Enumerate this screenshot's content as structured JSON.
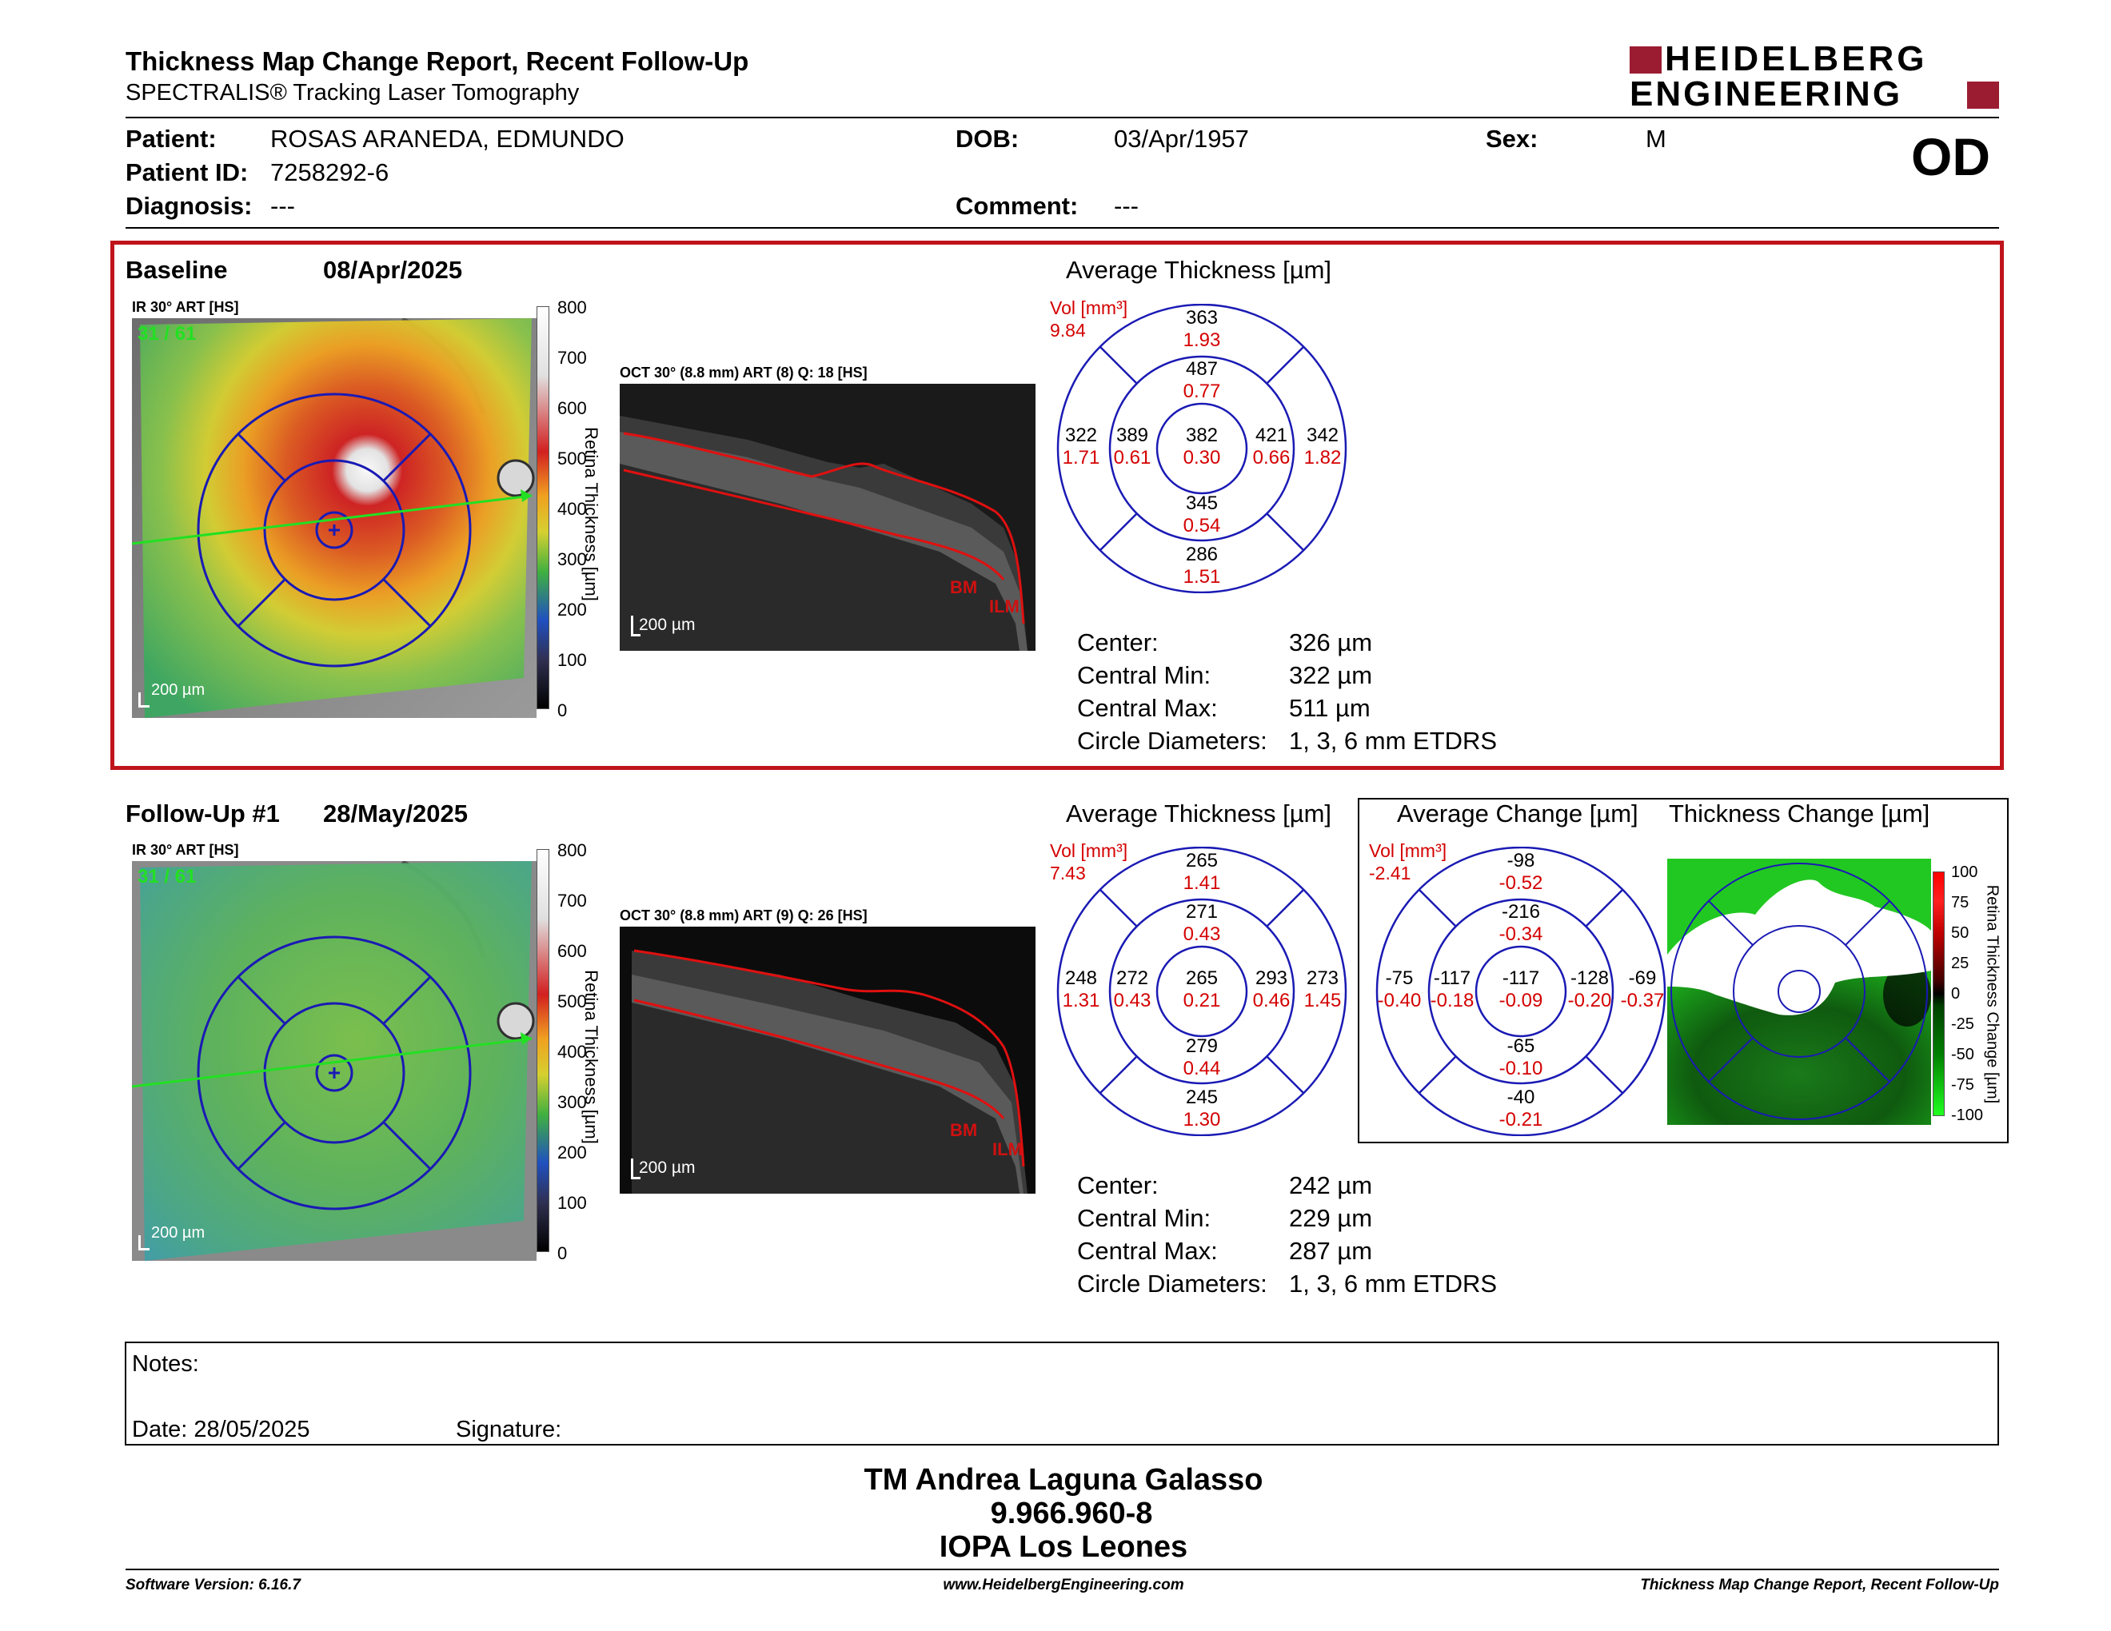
{
  "header": {
    "title": "Thickness Map Change Report, Recent Follow-Up",
    "subtitle": "SPECTRALIS® Tracking Laser Tomography",
    "logo_line1": "HEIDELBERG",
    "logo_line2": "ENGINEERING",
    "eye": "OD",
    "brand_color": "#9b1c31"
  },
  "patient": {
    "patient_label": "Patient:",
    "patient_value": "ROSAS ARANEDA, EDMUNDO",
    "id_label": "Patient ID:",
    "id_value": "7258292-6",
    "diagnosis_label": "Diagnosis:",
    "diagnosis_value": "---",
    "dob_label": "DOB:",
    "dob_value": "03/Apr/1957",
    "comment_label": "Comment:",
    "comment_value": "---",
    "sex_label": "Sex:",
    "sex_value": "M"
  },
  "baseline": {
    "label": "Baseline",
    "date": "08/Apr/2025",
    "ir_title": "IR 30° ART [HS]",
    "ir_counter": "31 / 61",
    "scalebar": "200 µm",
    "oct_title": "OCT 30° (8.8 mm) ART (8) Q: 18 [HS]",
    "oct_scalebar": "200 µm",
    "bm": "BM",
    "ilm": "ILM",
    "colorbar_ticks": [
      "800",
      "700",
      "600",
      "500",
      "400",
      "300",
      "200",
      "100",
      "0"
    ],
    "colorbar_label": "Retina Thickness [µm]",
    "avg_title": "Average Thickness [µm]",
    "vol_label": "Vol [mm³]",
    "vol_value": "9.84",
    "etdrs": {
      "outer_sup": [
        "363",
        "1.93"
      ],
      "inner_sup": [
        "487",
        "0.77"
      ],
      "outer_temp": [
        "322",
        "1.71"
      ],
      "inner_temp": [
        "389",
        "0.61"
      ],
      "center": [
        "382",
        "0.30"
      ],
      "inner_nas": [
        "421",
        "0.66"
      ],
      "outer_nas": [
        "342",
        "1.82"
      ],
      "inner_inf": [
        "345",
        "0.54"
      ],
      "outer_inf": [
        "286",
        "1.51"
      ]
    },
    "stats": {
      "center_label": "Center:",
      "center_value": "326 µm",
      "min_label": "Central Min:",
      "min_value": "322 µm",
      "max_label": "Central Max:",
      "max_value": "511 µm",
      "diam_label": "Circle Diameters:",
      "diam_value": "1, 3, 6 mm ETDRS"
    }
  },
  "followup": {
    "label": "Follow-Up #1",
    "date": "28/May/2025",
    "ir_title": "IR 30° ART [HS]",
    "ir_counter": "31 / 61",
    "scalebar": "200 µm",
    "oct_title": "OCT 30° (8.8 mm) ART (9) Q: 26 [HS]",
    "oct_scalebar": "200 µm",
    "bm": "BM",
    "ilm": "ILM",
    "colorbar_ticks": [
      "800",
      "700",
      "600",
      "500",
      "400",
      "300",
      "200",
      "100",
      "0"
    ],
    "colorbar_label": "Retina Thickness [µm]",
    "avg_title": "Average Thickness [µm]",
    "vol_label": "Vol [mm³]",
    "vol_value": "7.43",
    "etdrs": {
      "outer_sup": [
        "265",
        "1.41"
      ],
      "inner_sup": [
        "271",
        "0.43"
      ],
      "outer_temp": [
        "248",
        "1.31"
      ],
      "inner_temp": [
        "272",
        "0.43"
      ],
      "center": [
        "265",
        "0.21"
      ],
      "inner_nas": [
        "293",
        "0.46"
      ],
      "outer_nas": [
        "273",
        "1.45"
      ],
      "inner_inf": [
        "279",
        "0.44"
      ],
      "outer_inf": [
        "245",
        "1.30"
      ]
    },
    "stats": {
      "center_label": "Center:",
      "center_value": "242 µm",
      "min_label": "Central Min:",
      "min_value": "229 µm",
      "max_label": "Central Max:",
      "max_value": "287 µm",
      "diam_label": "Circle Diameters:",
      "diam_value": "1, 3, 6 mm ETDRS"
    },
    "change_title": "Average Change [µm]",
    "change_vol_label": "Vol [mm³]",
    "change_vol_value": "-2.41",
    "change": {
      "outer_sup": [
        "-98",
        "-0.52"
      ],
      "inner_sup": [
        "-216",
        "-0.34"
      ],
      "outer_temp": [
        "-75",
        "-0.40"
      ],
      "inner_temp": [
        "-117",
        "-0.18"
      ],
      "center": [
        "-117",
        "-0.09"
      ],
      "inner_nas": [
        "-128",
        "-0.20"
      ],
      "outer_nas": [
        "-69",
        "-0.37"
      ],
      "inner_inf": [
        "-65",
        "-0.10"
      ],
      "outer_inf": [
        "-40",
        "-0.21"
      ]
    },
    "tc_title": "Thickness Change [µm]",
    "tc_ticks": [
      "100",
      "75",
      "50",
      "25",
      "0",
      "-25",
      "-50",
      "-75",
      "-100"
    ],
    "tc_label": "Retina Thickness Change [µm]"
  },
  "notes": {
    "notes_label": "Notes:",
    "date_label": "Date: 28/05/2025",
    "signature_label": "Signature:"
  },
  "signoff": {
    "line1": "TM Andrea Laguna Galasso",
    "line2": "9.966.960-8",
    "line3": "IOPA Los Leones"
  },
  "footer": {
    "left": "Software Version: 6.16.7",
    "center": "www.HeidelbergEngineering.com",
    "right": "Thickness Map Change Report, Recent Follow-Up"
  }
}
